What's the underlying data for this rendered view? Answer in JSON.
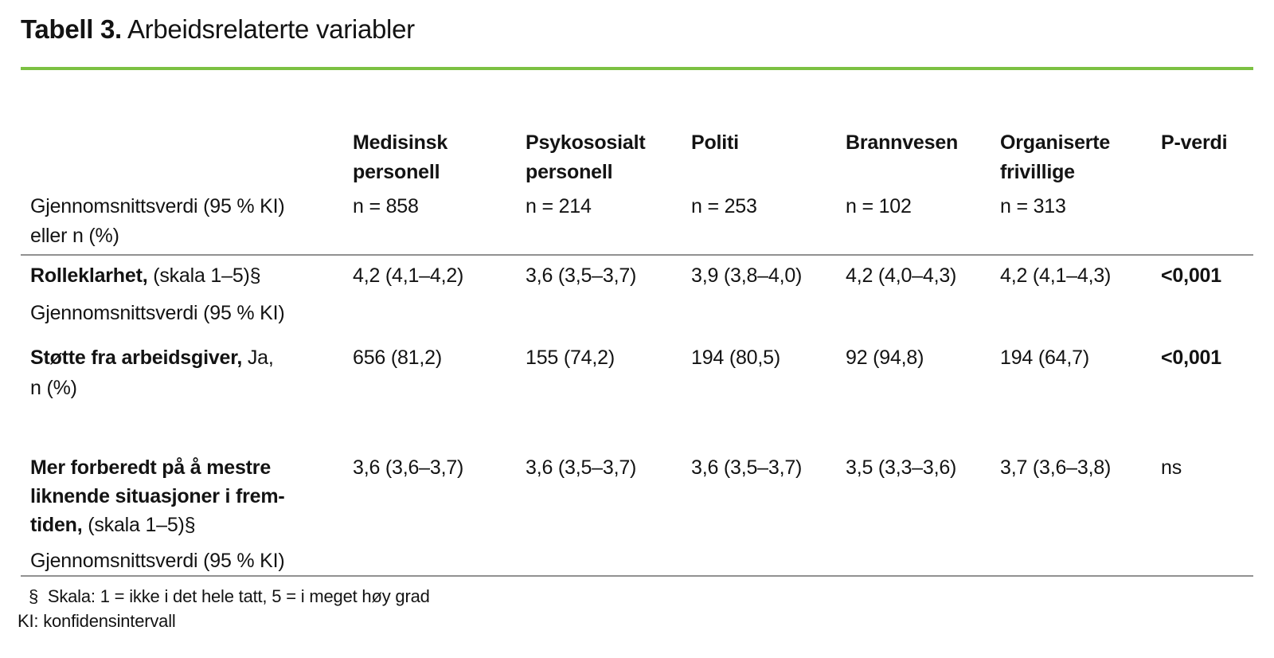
{
  "title": {
    "prefix": "Tabell 3.",
    "rest": " Arbeidsrelaterte variabler"
  },
  "colors": {
    "accent_green": "#7cc142",
    "rule_gray": "#919191",
    "text": "#131313"
  },
  "table": {
    "stub_header": "Gjennomsnittsverdi (95 % KI)\neller n (%)",
    "columns": [
      {
        "label": "Medisinsk\npersonell",
        "n": "n = 858"
      },
      {
        "label": "Psykososialt\npersonell",
        "n": "n = 214"
      },
      {
        "label": "Politi",
        "n": "n = 253"
      },
      {
        "label": "Brannvesen",
        "n": "n = 102"
      },
      {
        "label": "Organiserte\nfrivillige",
        "n": "n = 313"
      },
      {
        "label": "P-verdi",
        "n": ""
      }
    ],
    "rows": [
      {
        "label_bold": "Rolleklarhet,",
        "label_regular": " (skala 1–5)§",
        "sublabel": "Gjennomsnittsverdi (95 % KI)",
        "values": [
          "4,2 (4,1–4,2)",
          "3,6 (3,5–3,7)",
          "3,9 (3,8–4,0)",
          "4,2 (4,0–4,3)",
          "4,2 (4,1–4,3)"
        ],
        "p_value": "<0,001"
      },
      {
        "label_bold": "Støtte fra arbeidsgiver,",
        "label_regular": " Ja,\nn (%)",
        "sublabel": "",
        "values": [
          "656 (81,2)",
          "155 (74,2)",
          "194 (80,5)",
          "92 (94,8)",
          "194 (64,7)"
        ],
        "p_value": "<0,001"
      },
      {
        "label_bold": "Mer forberedt på å mestre\nliknende situasjoner i frem-\ntiden,",
        "label_regular": " (skala 1–5)§",
        "sublabel": "Gjennomsnittsverdi (95 % KI)",
        "values": [
          "3,6 (3,6–3,7)",
          "3,6 (3,5–3,7)",
          "3,6 (3,5–3,7)",
          "3,5 (3,3–3,6)",
          "3,7 (3,6–3,8)"
        ],
        "p_value": "ns"
      }
    ]
  },
  "footnotes": [
    "§  Skala: 1 = ikke i det hele tatt, 5 = i meget høy grad",
    "KI: konfidensintervall"
  ]
}
